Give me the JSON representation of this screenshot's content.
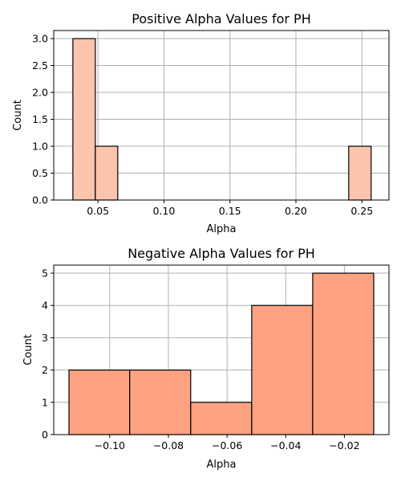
{
  "chart_data": [
    {
      "type": "bar",
      "title": "Positive Alpha Values for PH",
      "xlabel": "Alpha",
      "ylabel": "Count",
      "xlim": [
        0.0165,
        0.2705
      ],
      "ylim": [
        0,
        3.15
      ],
      "xticks": [
        "0.05",
        "0.10",
        "0.15",
        "0.20",
        "0.25"
      ],
      "xtick_values": [
        0.05,
        0.1,
        0.15,
        0.2,
        0.25
      ],
      "yticks": [
        "0.0",
        "0.5",
        "1.0",
        "1.5",
        "2.0",
        "2.5",
        "3.0"
      ],
      "ytick_values": [
        0,
        0.5,
        1.0,
        1.5,
        2.0,
        2.5,
        3.0
      ],
      "grid": true,
      "color": "#fcc4ad",
      "bins": [
        {
          "x0": 0.031,
          "x1": 0.048,
          "count": 3
        },
        {
          "x0": 0.048,
          "x1": 0.065,
          "count": 1
        },
        {
          "x0": 0.065,
          "x1": 0.082,
          "count": 0
        },
        {
          "x0": 0.082,
          "x1": 0.099,
          "count": 0
        },
        {
          "x0": 0.099,
          "x1": 0.116,
          "count": 0
        },
        {
          "x0": 0.116,
          "x1": 0.133,
          "count": 0
        },
        {
          "x0": 0.133,
          "x1": 0.15,
          "count": 0
        },
        {
          "x0": 0.15,
          "x1": 0.167,
          "count": 0
        },
        {
          "x0": 0.167,
          "x1": 0.184,
          "count": 0
        },
        {
          "x0": 0.184,
          "x1": 0.201,
          "count": 0
        },
        {
          "x0": 0.201,
          "x1": 0.218,
          "count": 0
        },
        {
          "x0": 0.218,
          "x1": 0.235,
          "count": 0
        },
        {
          "x0": 0.235,
          "x1": 0.24,
          "count": 0
        },
        {
          "x0": 0.24,
          "x1": 0.257,
          "count": 1
        }
      ]
    },
    {
      "type": "bar",
      "title": "Negative Alpha Values for PH",
      "xlabel": "Alpha",
      "ylabel": "Count",
      "xlim": [
        -0.1191,
        -0.0048
      ],
      "ylim": [
        0,
        5.25
      ],
      "xticks": [
        "−0.10",
        "−0.08",
        "−0.06",
        "−0.04",
        "−0.02"
      ],
      "xtick_values": [
        -0.1,
        -0.08,
        -0.06,
        -0.04,
        -0.02
      ],
      "yticks": [
        "0",
        "1",
        "2",
        "3",
        "4",
        "5"
      ],
      "ytick_values": [
        0,
        1,
        2,
        3,
        4,
        5
      ],
      "grid": true,
      "color": "#fca283",
      "bins": [
        {
          "x0": -0.1139,
          "x1": -0.0932,
          "count": 2
        },
        {
          "x0": -0.0932,
          "x1": -0.0724,
          "count": 2
        },
        {
          "x0": -0.0724,
          "x1": -0.0516,
          "count": 1
        },
        {
          "x0": -0.0516,
          "x1": -0.0308,
          "count": 4
        },
        {
          "x0": -0.0308,
          "x1": -0.01,
          "count": 5
        }
      ]
    }
  ]
}
